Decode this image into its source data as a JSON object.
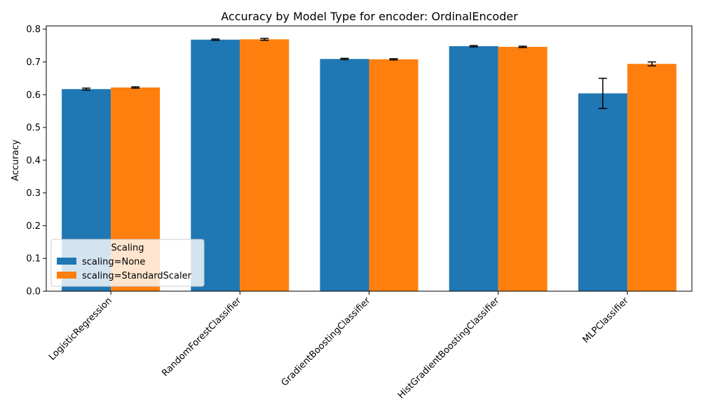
{
  "chart_data": {
    "type": "bar",
    "title": "Accuracy by Model Type for encoder: OrdinalEncoder",
    "xlabel": "",
    "ylabel": "Accuracy",
    "ylim": [
      0,
      0.81
    ],
    "yticks": [
      0.0,
      0.1,
      0.2,
      0.3,
      0.4,
      0.5,
      0.6,
      0.7,
      0.8
    ],
    "ytick_labels": [
      "0.0",
      "0.1",
      "0.2",
      "0.3",
      "0.4",
      "0.5",
      "0.6",
      "0.7",
      "0.8"
    ],
    "categories": [
      "LogisticRegression",
      "RandomForestClassifier",
      "GradientBoostingClassifier",
      "HistGradientBoostingClassifier",
      "MLPClassifier"
    ],
    "series": [
      {
        "name": "scaling=None",
        "color": "#1f77b4",
        "values": [
          0.617,
          0.768,
          0.709,
          0.748,
          0.604
        ],
        "errors": [
          0.003,
          0.002,
          0.002,
          0.002,
          0.046
        ]
      },
      {
        "name": "scaling=StandardScaler",
        "color": "#ff7f0e",
        "values": [
          0.622,
          0.769,
          0.708,
          0.746,
          0.694
        ],
        "errors": [
          0.002,
          0.003,
          0.002,
          0.002,
          0.006
        ]
      }
    ],
    "legend": {
      "title": "Scaling",
      "placement": "lower-left"
    },
    "grid": false
  }
}
